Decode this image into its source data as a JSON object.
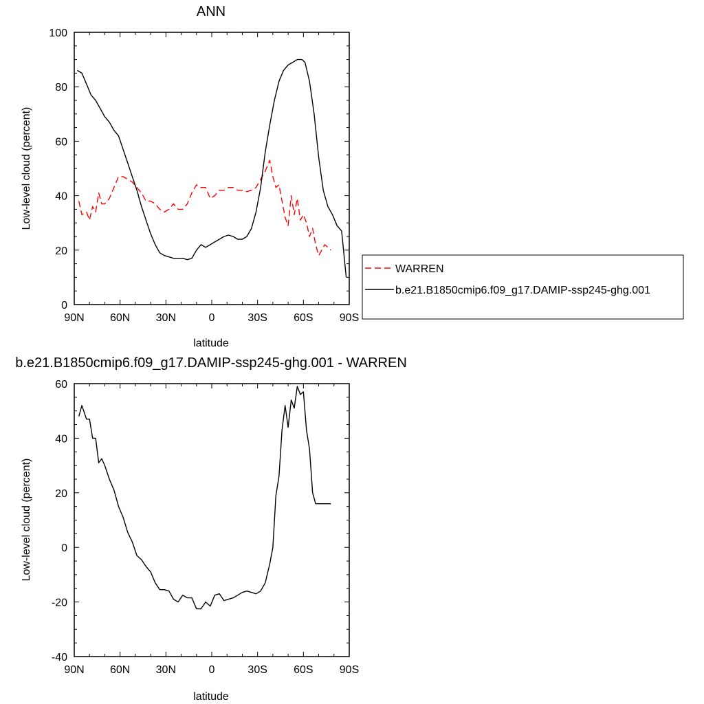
{
  "chart_data": [
    {
      "type": "line",
      "title": "ANN",
      "xlabel": "latitude",
      "ylabel": "Low-level cloud (percent)",
      "xlim": [
        90,
        -90
      ],
      "ylim": [
        0,
        100
      ],
      "xticks": [
        90,
        60,
        30,
        0,
        -30,
        -60,
        -90
      ],
      "xtick_labels": [
        "90N",
        "60N",
        "30N",
        "0",
        "30S",
        "60S",
        "90S"
      ],
      "yticks": [
        0,
        20,
        40,
        60,
        80,
        100
      ],
      "ytick_labels": [
        "0",
        "20",
        "40",
        "60",
        "80",
        "100"
      ],
      "legend": "right",
      "series": [
        {
          "name": "WARREN",
          "color": "#ff0000",
          "style": "dashed",
          "x": [
            87,
            85,
            82,
            80,
            78,
            76,
            74,
            72,
            70,
            67,
            64,
            61,
            58,
            55,
            52,
            49,
            46,
            43,
            40,
            37,
            34,
            31,
            28,
            25,
            22,
            19,
            16,
            13,
            10,
            7,
            4,
            1,
            -2,
            -5,
            -8,
            -11,
            -14,
            -17,
            -20,
            -23,
            -26,
            -29,
            -32,
            -35,
            -38,
            -40,
            -42,
            -44,
            -46,
            -48,
            -50,
            -52,
            -54,
            -56,
            -58,
            -60,
            -62,
            -64,
            -66,
            -68,
            -70,
            -72,
            -74,
            -76,
            -78
          ],
          "y": [
            38,
            33,
            34,
            31,
            36,
            34,
            41,
            37,
            37,
            39,
            43,
            47,
            47,
            46,
            45,
            43,
            41,
            38,
            38,
            37,
            35,
            34,
            35,
            37,
            35,
            35,
            37,
            41,
            44,
            43,
            43,
            39,
            40,
            42,
            42,
            43,
            43,
            42,
            42,
            41.5,
            42,
            43,
            46,
            49,
            53,
            47,
            43,
            44,
            38,
            32,
            29,
            40,
            33,
            39,
            31,
            33,
            30,
            25,
            28,
            22,
            18,
            20,
            22,
            21,
            20
          ]
        },
        {
          "name": "b.e21.B1850cmip6.f09_g17.DAMIP-ssp245-ghg.001",
          "color": "#000000",
          "style": "solid",
          "x": [
            88,
            85,
            82,
            79,
            76,
            73,
            70,
            67,
            64,
            61,
            58,
            55,
            52,
            49,
            46,
            43,
            40,
            37,
            34,
            31,
            28,
            25,
            22,
            19,
            16,
            13,
            10,
            7,
            4,
            1,
            -2,
            -5,
            -8,
            -11,
            -14,
            -17,
            -20,
            -23,
            -26,
            -29,
            -32,
            -35,
            -38,
            -41,
            -44,
            -47,
            -50,
            -53,
            -56,
            -59,
            -61,
            -64,
            -67,
            -70,
            -73,
            -76,
            -79,
            -82,
            -85,
            -88
          ],
          "y": [
            86,
            85,
            81,
            77,
            75,
            72,
            69,
            67,
            64,
            62,
            57,
            52,
            47,
            42,
            36,
            31,
            26,
            22,
            19,
            18,
            17.5,
            17,
            17,
            17,
            16.5,
            17,
            20,
            22,
            21,
            22,
            23,
            24,
            25,
            25.5,
            25,
            24,
            24,
            25,
            28,
            34,
            43,
            56,
            66,
            75,
            82,
            86,
            88,
            89,
            90,
            90,
            89,
            82,
            70,
            54,
            42,
            36,
            33,
            29,
            27,
            10
          ]
        }
      ]
    },
    {
      "type": "line",
      "title": "b.e21.B1850cmip6.f09_g17.DAMIP-ssp245-ghg.001 - WARREN",
      "xlabel": "latitude",
      "ylabel": "Low-level cloud (percent)",
      "xlim": [
        90,
        -90
      ],
      "ylim": [
        -40,
        60
      ],
      "xticks": [
        90,
        60,
        30,
        0,
        -30,
        -60,
        -90
      ],
      "xtick_labels": [
        "90N",
        "60N",
        "30N",
        "0",
        "30S",
        "60S",
        "90S"
      ],
      "yticks": [
        -40,
        -20,
        0,
        20,
        40,
        60
      ],
      "ytick_labels": [
        "-40",
        "-20",
        "0",
        "20",
        "40",
        "60"
      ],
      "series": [
        {
          "color": "#000000",
          "style": "solid",
          "x": [
            87,
            85,
            82,
            80,
            78,
            76,
            74,
            72,
            70,
            67,
            64,
            61,
            58,
            55,
            52,
            49,
            46,
            43,
            40,
            37,
            34,
            31,
            28,
            25,
            22,
            19,
            16,
            13,
            10,
            7,
            4,
            1,
            -2,
            -5,
            -8,
            -11,
            -14,
            -17,
            -20,
            -23,
            -26,
            -29,
            -32,
            -35,
            -38,
            -40,
            -42,
            -44,
            -46,
            -48,
            -50,
            -52,
            -54,
            -56,
            -58,
            -60,
            -62,
            -64,
            -66,
            -68,
            -70,
            -72,
            -74,
            -76,
            -78
          ],
          "y": [
            48,
            52,
            47,
            47,
            40,
            40,
            31,
            32.5,
            30,
            25,
            21,
            15,
            11,
            5.5,
            2,
            -3,
            -4.5,
            -7,
            -9,
            -13,
            -15.5,
            -15.5,
            -16,
            -19,
            -20,
            -17.5,
            -18.5,
            -18.5,
            -22.5,
            -22.5,
            -20,
            -21.5,
            -17.5,
            -17,
            -19.5,
            -19,
            -18.5,
            -17.5,
            -16.5,
            -16,
            -16.5,
            -17,
            -16,
            -13,
            -6,
            0,
            19,
            26,
            43,
            52,
            44,
            54,
            51,
            59,
            56,
            57,
            43,
            36,
            20,
            16,
            16,
            16,
            16,
            16,
            16
          ]
        }
      ]
    }
  ]
}
